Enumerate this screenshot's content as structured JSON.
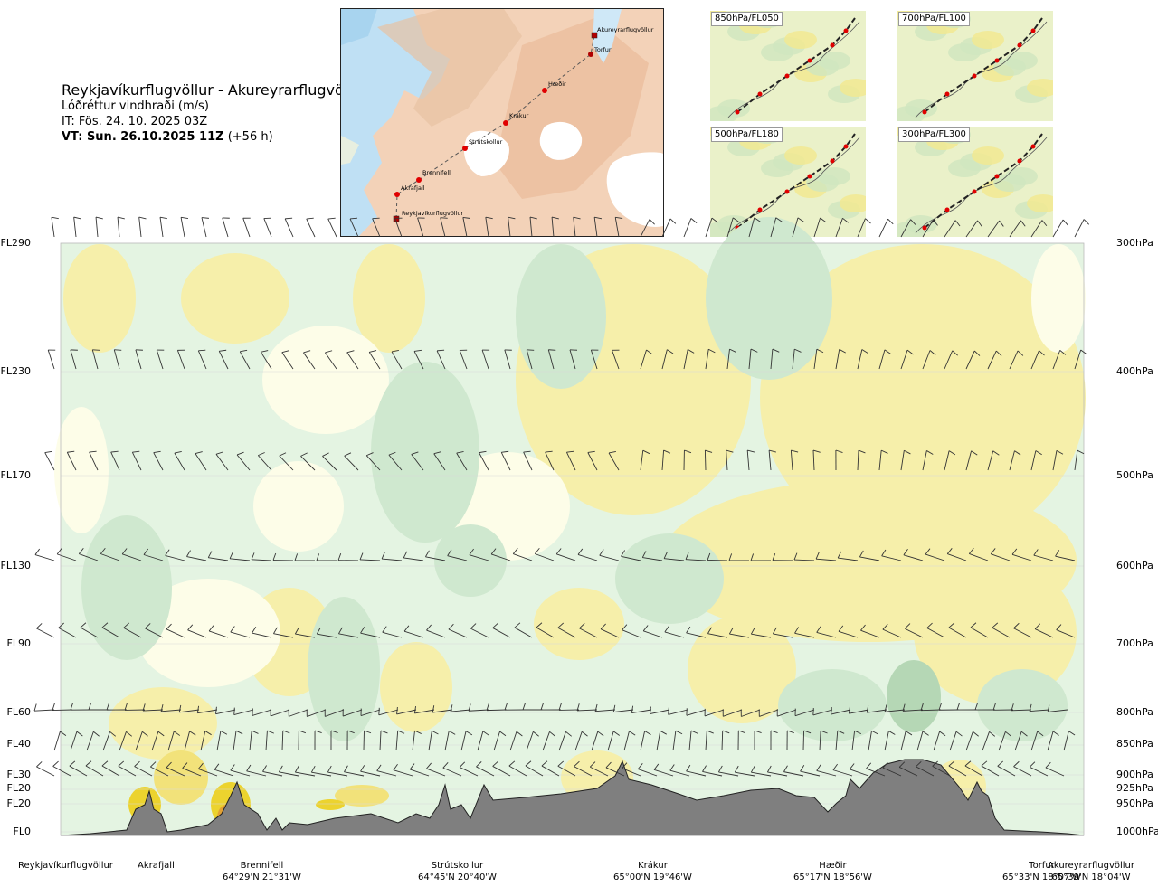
{
  "title": {
    "route": "Reykjavíkurflugvöllur - Akureyrarflugvöllur",
    "parameter": "Lóðréttur vindhraði (m/s)",
    "it_time": "IT: Fös. 24. 10. 2025 03Z",
    "vt_time": "VT: Sun. 26.10.2025 11Z",
    "vt_offset": "(+56 h)"
  },
  "map": {
    "stations": [
      "Akureyrarflugvöllur",
      "Torfur",
      "Hæðir",
      "Krákur",
      "Strútskollur",
      "Brennifell",
      "Akrafjall",
      "Reykjavíkurflugvöllur"
    ]
  },
  "thumbnails": [
    "850hPa/FL050",
    "700hPa/FL100",
    "500hPa/FL180",
    "300hPa/FL300"
  ],
  "chart_data": {
    "type": "heatmap",
    "title": "Lóðréttur vindhraði (m/s)",
    "y_left_ticks": [
      "FL290",
      "FL230",
      "FL170",
      "FL130",
      "FL90",
      "FL60",
      "FL40",
      "FL30",
      "FL20",
      "FL20",
      "FL0"
    ],
    "y_right_ticks": [
      "300hPa",
      "400hPa",
      "500hPa",
      "600hPa",
      "700hPa",
      "800hPa",
      "850hPa",
      "900hPa",
      "925hPa",
      "950hPa",
      "1000hPa"
    ],
    "pressure_levels_hpa": [
      300,
      400,
      500,
      600,
      700,
      800,
      850,
      900,
      925,
      950,
      1000
    ],
    "x_locations": [
      {
        "name": "Reykjavíkurflugvöllur",
        "coord": ""
      },
      {
        "name": "Akrafjall",
        "coord": ""
      },
      {
        "name": "Brennifell",
        "coord": "64°29'N 21°31'W"
      },
      {
        "name": "Strútskollur",
        "coord": "64°45'N 20°40'W"
      },
      {
        "name": "Krákur",
        "coord": "65°00'N 19°46'W"
      },
      {
        "name": "Hæðir",
        "coord": "65°17'N 18°56'W"
      },
      {
        "name": "Torfur",
        "coord": "65°33'N 18°07'W"
      },
      {
        "name": "Akureyrarflugvöllur",
        "coord": "65°39'N 18°04'W"
      }
    ],
    "colors": {
      "sinking_strong": "#b5d7b5",
      "sinking_moderate": "#cfe8cf",
      "sinking_weak": "#e4f4e2",
      "neutral": "#fdfde8",
      "rising_weak": "#f6efaa",
      "rising_moderate": "#f2e27a",
      "rising_strong": "#ecd32e",
      "rising_extreme": "#e2a133",
      "terrain": "#7f7f7f"
    }
  }
}
